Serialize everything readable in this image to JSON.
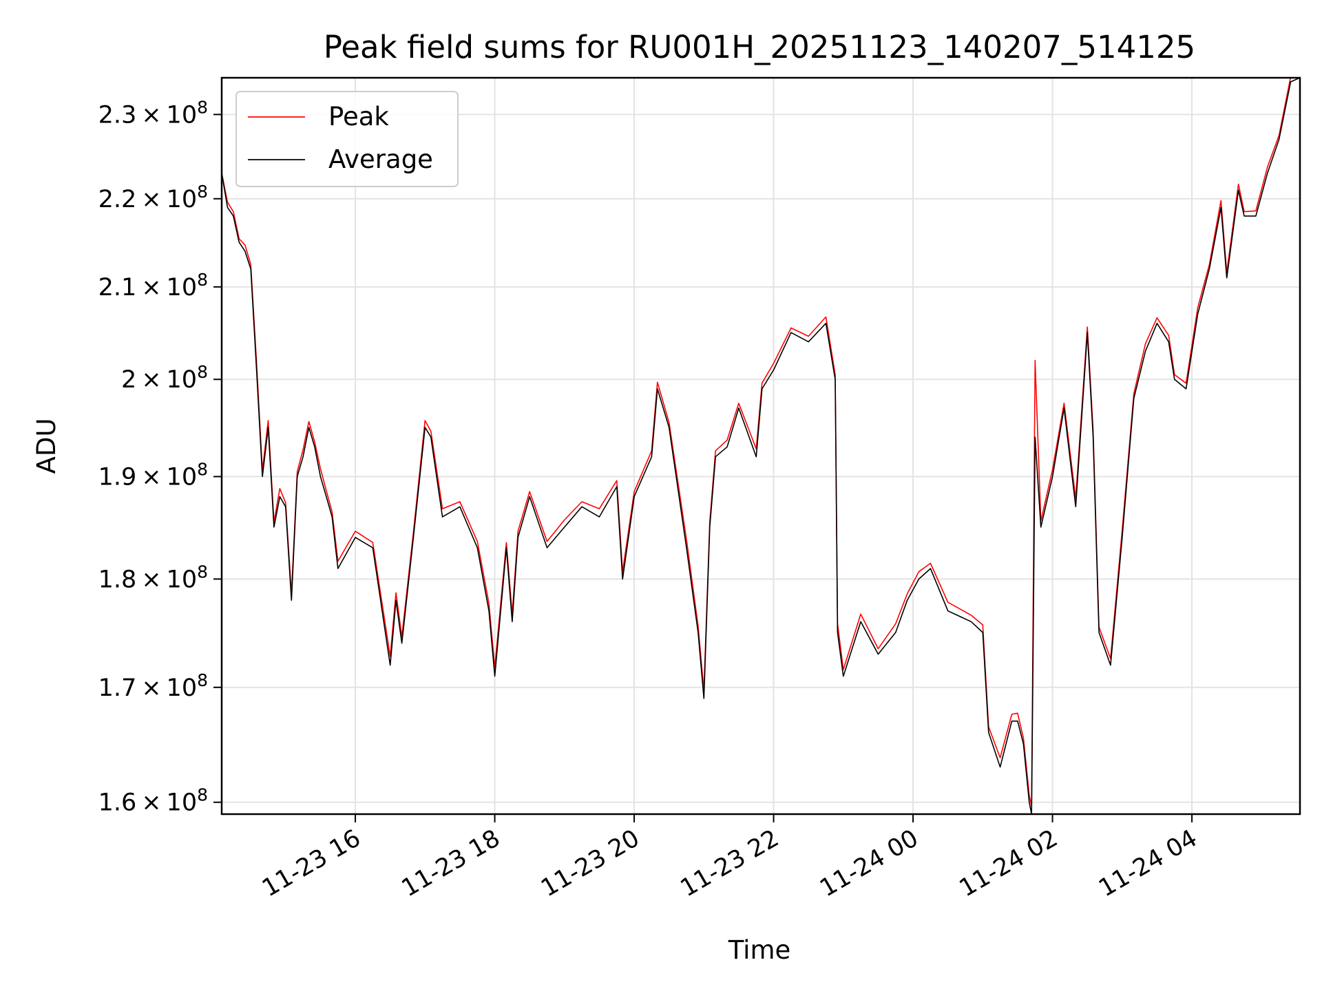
{
  "chart_data": {
    "type": "line",
    "title": "Peak field sums for RU001H_20251123_140207_514125",
    "xlabel": "Time",
    "ylabel": "ADU",
    "y_scale": "log",
    "ylim": [
      159000000,
      234500000
    ],
    "xlim": [
      "11-23 14:05",
      "11-24 05:33"
    ],
    "grid": true,
    "legend_position": "upper-left",
    "x_ticks": [
      "11-23 16",
      "11-23 18",
      "11-23 20",
      "11-23 22",
      "11-24 00",
      "11-24 02",
      "11-24 04"
    ],
    "y_ticks": [
      {
        "value": 160000000,
        "mantissa": "1.6"
      },
      {
        "value": 170000000,
        "mantissa": "1.7"
      },
      {
        "value": 180000000,
        "mantissa": "1.8"
      },
      {
        "value": 190000000,
        "mantissa": "1.9"
      },
      {
        "value": 200000000,
        "mantissa": "2"
      },
      {
        "value": 210000000,
        "mantissa": "2.1"
      },
      {
        "value": 220000000,
        "mantissa": "2.2"
      },
      {
        "value": 230000000,
        "mantissa": "2.3"
      }
    ],
    "y_tick_exponent": "8",
    "series": [
      {
        "name": "Peak",
        "color": "#ff0000"
      },
      {
        "name": "Average",
        "color": "#000000"
      }
    ],
    "x": [
      "11-23 14:05",
      "11-23 14:10",
      "11-23 14:15",
      "11-23 14:20",
      "11-23 14:25",
      "11-23 14:30",
      "11-23 14:35",
      "11-23 14:40",
      "11-23 14:45",
      "11-23 14:50",
      "11-23 14:55",
      "11-23 15:00",
      "11-23 15:05",
      "11-23 15:10",
      "11-23 15:15",
      "11-23 15:20",
      "11-23 15:25",
      "11-23 15:30",
      "11-23 15:35",
      "11-23 15:40",
      "11-23 15:45",
      "11-23 16:00",
      "11-23 16:15",
      "11-23 16:30",
      "11-23 16:35",
      "11-23 16:40",
      "11-23 16:50",
      "11-23 17:00",
      "11-23 17:05",
      "11-23 17:15",
      "11-23 17:30",
      "11-23 17:45",
      "11-23 17:55",
      "11-23 18:00",
      "11-23 18:10",
      "11-23 18:15",
      "11-23 18:20",
      "11-23 18:30",
      "11-23 18:45",
      "11-23 19:00",
      "11-23 19:15",
      "11-23 19:30",
      "11-23 19:45",
      "11-23 19:50",
      "11-23 20:00",
      "11-23 20:15",
      "11-23 20:20",
      "11-23 20:30",
      "11-23 20:45",
      "11-23 20:55",
      "11-23 21:00",
      "11-23 21:05",
      "11-23 21:10",
      "11-23 21:20",
      "11-23 21:30",
      "11-23 21:45",
      "11-23 21:50",
      "11-23 22:00",
      "11-23 22:15",
      "11-23 22:30",
      "11-23 22:45",
      "11-23 22:53",
      "11-23 22:55",
      "11-23 23:00",
      "11-23 23:15",
      "11-23 23:30",
      "11-23 23:45",
      "11-23 23:55",
      "11-24 00:05",
      "11-24 00:15",
      "11-24 00:30",
      "11-24 00:50",
      "11-24 01:00",
      "11-24 01:05",
      "11-24 01:15",
      "11-24 01:25",
      "11-24 01:30",
      "11-24 01:35",
      "11-24 01:40",
      "11-24 01:42",
      "11-24 01:45",
      "11-24 01:50",
      "11-24 02:00",
      "11-24 02:10",
      "11-24 02:20",
      "11-24 02:30",
      "11-24 02:35",
      "11-24 02:40",
      "11-24 02:50",
      "11-24 03:00",
      "11-24 03:10",
      "11-24 03:20",
      "11-24 03:30",
      "11-24 03:40",
      "11-24 03:45",
      "11-24 03:55",
      "11-24 04:05",
      "11-24 04:15",
      "11-24 04:25",
      "11-24 04:30",
      "11-24 04:40",
      "11-24 04:45",
      "11-24 04:55",
      "11-24 05:05",
      "11-24 05:15",
      "11-24 05:25",
      "11-24 05:33"
    ],
    "average": [
      223000000,
      219000000,
      218000000,
      215000000,
      214000000,
      212000000,
      201000000,
      190000000,
      195000000,
      185000000,
      188000000,
      187000000,
      178000000,
      190000000,
      192000000,
      195000000,
      193000000,
      190000000,
      188000000,
      186000000,
      181000000,
      184000000,
      183000000,
      172000000,
      178000000,
      174000000,
      184000000,
      195000000,
      194000000,
      186000000,
      187000000,
      183000000,
      177000000,
      171000000,
      183000000,
      176000000,
      184000000,
      188000000,
      183000000,
      185000000,
      187000000,
      186000000,
      189000000,
      180000000,
      188000000,
      192000000,
      199000000,
      195000000,
      183000000,
      175000000,
      169000000,
      185000000,
      192000000,
      193000000,
      197000000,
      192000000,
      199000000,
      201000000,
      205000000,
      204000000,
      206000000,
      200000000,
      175000000,
      171000000,
      176000000,
      173000000,
      175000000,
      178000000,
      180000000,
      181000000,
      177000000,
      176000000,
      175000000,
      166000000,
      163000000,
      167000000,
      167000000,
      165000000,
      160000000,
      159000000,
      194000000,
      185000000,
      190000000,
      197000000,
      187000000,
      205000000,
      194000000,
      175000000,
      172000000,
      184000000,
      198000000,
      203000000,
      206000000,
      204000000,
      200000000,
      199000000,
      207000000,
      212000000,
      219000000,
      211000000,
      221000000,
      218000000,
      218000000,
      223000000,
      227000000,
      234000000,
      234500000
    ],
    "peak_offset": [
      0,
      600000,
      500000,
      400000,
      700000,
      500000,
      800000,
      600000,
      700000,
      500000,
      800000,
      400000,
      600000,
      500000,
      700000,
      600000,
      500000,
      800000,
      600000,
      500000,
      700000,
      600000,
      500000,
      800000,
      700000,
      600000,
      500000,
      700000,
      600000,
      800000,
      500000,
      600000,
      700000,
      800000,
      500000,
      700000,
      600000,
      500000,
      600000,
      700000,
      500000,
      800000,
      600000,
      700000,
      500000,
      600000,
      700000,
      500000,
      800000,
      600000,
      700000,
      500000,
      600000,
      700000,
      500000,
      800000,
      600000,
      700000,
      500000,
      600000,
      700000,
      500000,
      800000,
      600000,
      700000,
      500000,
      800000,
      600000,
      700000,
      500000,
      800000,
      600000,
      700000,
      500000,
      800000,
      600000,
      700000,
      500000,
      600000,
      700000,
      8000000,
      600000,
      700000,
      500000,
      800000,
      600000,
      700000,
      500000,
      600000,
      700000,
      500000,
      800000,
      600000,
      700000,
      500000,
      600000,
      700000,
      500000,
      800000,
      600000,
      700000,
      500000,
      600000,
      700000,
      500000,
      600000,
      0
    ]
  }
}
